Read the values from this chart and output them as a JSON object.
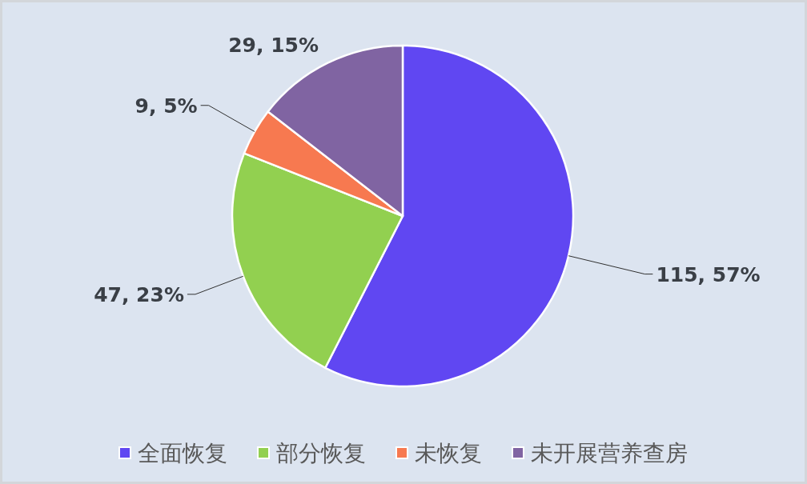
{
  "chart_data": {
    "type": "pie",
    "categories": [
      "全面恢复",
      "部分恢复",
      "未恢复",
      "未开展营养查房"
    ],
    "values": [
      115,
      47,
      9,
      29
    ],
    "colors": [
      "#6047f2",
      "#92d050",
      "#f77950",
      "#8064a2"
    ],
    "value_labels": [
      "115, 57%",
      "47, 23%",
      "9, 5%",
      "29, 15%"
    ],
    "legend": "bottom"
  }
}
